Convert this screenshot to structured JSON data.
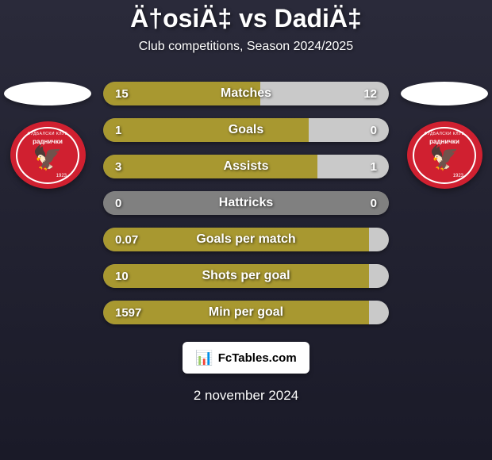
{
  "header": {
    "title": "Ä†osiÄ‡ vs DadiÄ‡",
    "subtitle": "Club competitions, Season 2024/2025"
  },
  "colors": {
    "background_top": "#2a2a3a",
    "background_bottom": "#1a1a28",
    "player1_bar": "#a89830",
    "player2_bar": "#c9c9c9",
    "neutral_bar": "#808080",
    "text": "#ffffff",
    "badge_bg": "#d02030",
    "flag_bg": "#ffffff"
  },
  "left_club": {
    "badge_text_top": "ФУДБАЛСКИ КЛУБ",
    "badge_text_main": "раднички",
    "badge_year": "1923",
    "badge_color": "#d02030"
  },
  "right_club": {
    "badge_text_top": "ФУДБАЛСКИ КЛУБ",
    "badge_text_main": "раднички",
    "badge_year": "1923",
    "badge_color": "#d02030"
  },
  "stats": [
    {
      "label": "Matches",
      "left_value": "15",
      "right_value": "12",
      "left_pct": 55,
      "right_pct": 45,
      "left_color": "#a89830",
      "right_color": "#c9c9c9"
    },
    {
      "label": "Goals",
      "left_value": "1",
      "right_value": "0",
      "left_pct": 72,
      "right_pct": 28,
      "left_color": "#a89830",
      "right_color": "#c9c9c9"
    },
    {
      "label": "Assists",
      "left_value": "3",
      "right_value": "1",
      "left_pct": 75,
      "right_pct": 25,
      "left_color": "#a89830",
      "right_color": "#c9c9c9"
    },
    {
      "label": "Hattricks",
      "left_value": "0",
      "right_value": "0",
      "left_pct": 50,
      "right_pct": 50,
      "left_color": "#808080",
      "right_color": "#808080"
    },
    {
      "label": "Goals per match",
      "left_value": "0.07",
      "right_value": "",
      "left_pct": 93,
      "right_pct": 7,
      "left_color": "#a89830",
      "right_color": "#c9c9c9"
    },
    {
      "label": "Shots per goal",
      "left_value": "10",
      "right_value": "",
      "left_pct": 93,
      "right_pct": 7,
      "left_color": "#a89830",
      "right_color": "#c9c9c9"
    },
    {
      "label": "Min per goal",
      "left_value": "1597",
      "right_value": "",
      "left_pct": 93,
      "right_pct": 7,
      "left_color": "#a89830",
      "right_color": "#c9c9c9"
    }
  ],
  "footer": {
    "site_label": "FcTables.com",
    "date": "2 november 2024"
  }
}
